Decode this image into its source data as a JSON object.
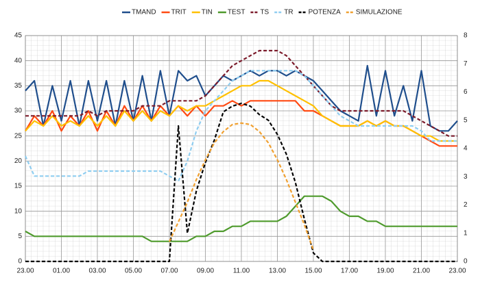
{
  "chart_data": {
    "type": "line",
    "x": [
      0,
      0.5,
      1,
      1.5,
      2,
      2.5,
      3,
      3.5,
      4,
      4.5,
      5,
      5.5,
      6,
      6.5,
      7,
      7.5,
      8,
      8.5,
      9,
      9.5,
      10,
      10.5,
      11,
      11.5,
      12,
      12.5,
      13,
      13.5,
      14,
      14.5,
      15,
      15.5,
      16,
      16.5,
      17,
      17.5,
      18,
      18.5,
      19,
      19.5,
      20,
      20.5,
      21,
      21.5,
      22,
      22.5,
      23,
      23.5,
      24
    ],
    "xlim": [
      0,
      24
    ],
    "xticks": [
      {
        "value": 0,
        "label": "23.00"
      },
      {
        "value": 2,
        "label": "01.00"
      },
      {
        "value": 4,
        "label": "03.00"
      },
      {
        "value": 6,
        "label": "05.00"
      },
      {
        "value": 8,
        "label": "07.00"
      },
      {
        "value": 10,
        "label": "09.00"
      },
      {
        "value": 12,
        "label": "11.00"
      },
      {
        "value": 14,
        "label": "13.00"
      },
      {
        "value": 16,
        "label": "15.00"
      },
      {
        "value": 18,
        "label": "17.00"
      },
      {
        "value": 20,
        "label": "19.00"
      },
      {
        "value": 22,
        "label": "21.00"
      },
      {
        "value": 24,
        "label": "23.00"
      }
    ],
    "ylim": [
      0,
      45
    ],
    "yticks": [
      0,
      5,
      10,
      15,
      20,
      25,
      30,
      35,
      40,
      45
    ],
    "y2lim": [
      0,
      8
    ],
    "y2ticks": [
      0,
      1,
      2,
      3,
      4,
      5,
      6,
      7,
      8
    ],
    "grid": true,
    "legend": "top",
    "series": [
      {
        "name": "TMAND",
        "color": "#1f4e8c",
        "values": [
          34,
          36,
          27,
          35,
          28,
          36,
          27,
          36,
          28,
          36,
          27,
          36,
          28,
          37,
          28,
          38,
          29,
          38,
          36,
          37,
          33,
          35,
          37,
          36,
          37,
          38,
          37,
          38,
          38,
          37,
          38,
          37,
          36,
          34,
          32,
          30,
          29,
          28,
          39,
          29,
          38,
          29,
          35,
          28,
          38,
          27,
          26,
          26,
          28
        ]
      },
      {
        "name": "TRIT",
        "color": "#ff4a12",
        "values": [
          26,
          29,
          27,
          30,
          26,
          29,
          27,
          30,
          26,
          30,
          27,
          31,
          28,
          31,
          28,
          31,
          29,
          31,
          29,
          31,
          29,
          31,
          31,
          32,
          31,
          32,
          32,
          32,
          32,
          32,
          32,
          30,
          30,
          29,
          28,
          27,
          27,
          27,
          28,
          27,
          28,
          27,
          27,
          26,
          25,
          24,
          23,
          23,
          23
        ]
      },
      {
        "name": "TIN",
        "color": "#ffc000",
        "values": [
          26,
          28,
          27,
          29,
          27,
          28,
          27,
          29,
          27,
          29,
          27,
          30,
          28,
          30,
          28,
          30,
          29,
          31,
          30,
          31,
          31,
          32,
          33,
          34,
          35,
          35,
          36,
          36,
          35,
          34,
          33,
          32,
          31,
          29,
          28,
          27,
          27,
          27,
          28,
          27,
          28,
          27,
          27,
          26,
          25,
          25,
          24,
          24,
          24
        ]
      },
      {
        "name": "TEST",
        "color": "#4e9a2c",
        "values": [
          6,
          5,
          5,
          5,
          5,
          5,
          5,
          5,
          5,
          5,
          5,
          5,
          5,
          5,
          4,
          4,
          4,
          4,
          4,
          5,
          5,
          6,
          6,
          7,
          7,
          8,
          8,
          8,
          8,
          9,
          11,
          13,
          13,
          13,
          12,
          10,
          9,
          9,
          8,
          8,
          7,
          7,
          7,
          7,
          7,
          7,
          7,
          7,
          7
        ]
      },
      {
        "name": "TS",
        "color": "#7b1a2a",
        "dashed": true,
        "values": [
          29,
          29,
          29,
          29,
          29,
          29,
          29,
          30,
          29,
          30,
          30,
          30,
          30,
          31,
          31,
          31,
          32,
          32,
          32,
          32,
          33,
          35,
          37,
          39,
          40,
          41,
          42,
          42,
          42,
          41,
          39,
          37,
          35,
          33,
          31,
          30,
          30,
          30,
          30,
          30,
          30,
          30,
          30,
          29,
          28,
          27,
          26,
          25,
          25
        ]
      },
      {
        "name": "TR",
        "color": "#8fcdf0",
        "dashed": true,
        "values": [
          21,
          17,
          17,
          17,
          17,
          17,
          17,
          18,
          18,
          18,
          18,
          18,
          18,
          18,
          18,
          18,
          17,
          16,
          20,
          26,
          30,
          32,
          34,
          36,
          37,
          38,
          38,
          38,
          38,
          38,
          38,
          37,
          35,
          33,
          31,
          29,
          28,
          27,
          27,
          27,
          27,
          27,
          27,
          27,
          26,
          24,
          24,
          24,
          24
        ]
      },
      {
        "name": "POTENZA",
        "color": "#000000",
        "dashed": true,
        "axis": "y2",
        "values": [
          0,
          0,
          0,
          0,
          0,
          0,
          0,
          0,
          0,
          0,
          0,
          0,
          0,
          0,
          0,
          0,
          0,
          4.8,
          1,
          2.5,
          3.5,
          4.3,
          5.3,
          5.5,
          5.6,
          5.5,
          5.2,
          5,
          4.5,
          3.8,
          2.8,
          1.5,
          0.3,
          0,
          0,
          0,
          0,
          0,
          0,
          0,
          0,
          0,
          0,
          0,
          0,
          0,
          0,
          0,
          0
        ]
      },
      {
        "name": "SIMULAZIONE",
        "color": "#f0a030",
        "dashed": true,
        "axis": "y2",
        "values": [
          null,
          null,
          null,
          null,
          null,
          null,
          null,
          null,
          null,
          null,
          null,
          null,
          null,
          null,
          null,
          null,
          0.7,
          1.4,
          2.1,
          2.9,
          3.6,
          4.2,
          4.6,
          4.85,
          4.9,
          4.85,
          4.6,
          4.2,
          3.6,
          2.9,
          2.1,
          1.3,
          0.4,
          null,
          null,
          null,
          null,
          null,
          null,
          null,
          null,
          null,
          null,
          null,
          null,
          null,
          null,
          null,
          null
        ]
      }
    ]
  }
}
